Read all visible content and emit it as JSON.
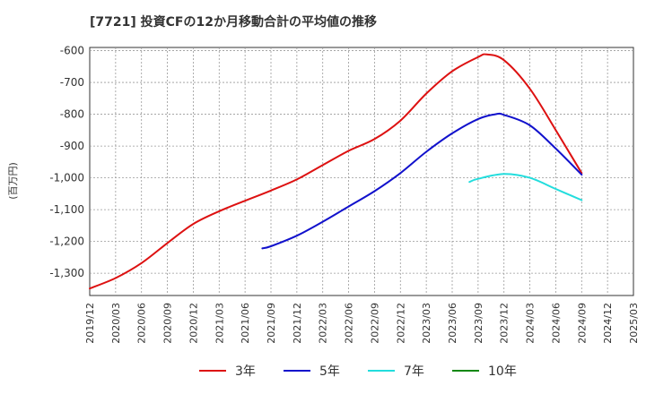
{
  "chart_data": {
    "type": "line",
    "title": "[7721]  投資CFの12か月移動合計の平均値の推移",
    "ylabel": "(百万円)",
    "xlabel": "",
    "ylim": [
      -1370,
      -590
    ],
    "yticks": [
      -600,
      -700,
      -800,
      -900,
      -1000,
      -1100,
      -1200,
      -1300
    ],
    "ytick_labels": [
      "-600",
      "-700",
      "-800",
      "-900",
      "-1,000",
      "-1,100",
      "-1,200",
      "-1,300"
    ],
    "xticks": [
      "2019/12",
      "2020/03",
      "2020/06",
      "2020/09",
      "2020/12",
      "2021/03",
      "2021/06",
      "2021/09",
      "2021/12",
      "2022/03",
      "2022/06",
      "2022/09",
      "2022/12",
      "2023/03",
      "2023/06",
      "2023/09",
      "2023/12",
      "2024/03",
      "2024/06",
      "2024/09",
      "2024/12",
      "2025/03"
    ],
    "grid": true,
    "legend_position": "bottom",
    "series": [
      {
        "name": "3年",
        "color": "#dd1111",
        "points": [
          [
            "2019/12",
            -1348
          ],
          [
            "2020/03",
            -1315
          ],
          [
            "2020/06",
            -1268
          ],
          [
            "2020/09",
            -1205
          ],
          [
            "2020/12",
            -1145
          ],
          [
            "2021/03",
            -1105
          ],
          [
            "2021/06",
            -1072
          ],
          [
            "2021/09",
            -1040
          ],
          [
            "2021/12",
            -1005
          ],
          [
            "2022/03",
            -960
          ],
          [
            "2022/06",
            -915
          ],
          [
            "2022/09",
            -878
          ],
          [
            "2022/12",
            -820
          ],
          [
            "2023/03",
            -735
          ],
          [
            "2023/06",
            -665
          ],
          [
            "2023/09",
            -620
          ],
          [
            "2023/10",
            -612
          ],
          [
            "2023/12",
            -630
          ],
          [
            "2024/03",
            -720
          ],
          [
            "2024/06",
            -850
          ],
          [
            "2024/09",
            -985
          ]
        ]
      },
      {
        "name": "5年",
        "color": "#1111cc",
        "points": [
          [
            "2021/08",
            -1222
          ],
          [
            "2021/09",
            -1215
          ],
          [
            "2021/12",
            -1182
          ],
          [
            "2022/03",
            -1138
          ],
          [
            "2022/06",
            -1090
          ],
          [
            "2022/09",
            -1042
          ],
          [
            "2022/12",
            -985
          ],
          [
            "2023/03",
            -918
          ],
          [
            "2023/06",
            -860
          ],
          [
            "2023/09",
            -815
          ],
          [
            "2023/11",
            -800
          ],
          [
            "2023/12",
            -802
          ],
          [
            "2024/03",
            -835
          ],
          [
            "2024/06",
            -908
          ],
          [
            "2024/09",
            -990
          ]
        ]
      },
      {
        "name": "7年",
        "color": "#22dddd",
        "points": [
          [
            "2023/08",
            -1013
          ],
          [
            "2023/09",
            -1003
          ],
          [
            "2023/12",
            -988
          ],
          [
            "2024/03",
            -1000
          ],
          [
            "2024/06",
            -1035
          ],
          [
            "2024/09",
            -1070
          ]
        ]
      },
      {
        "name": "10年",
        "color": "#118811",
        "points": []
      }
    ]
  }
}
